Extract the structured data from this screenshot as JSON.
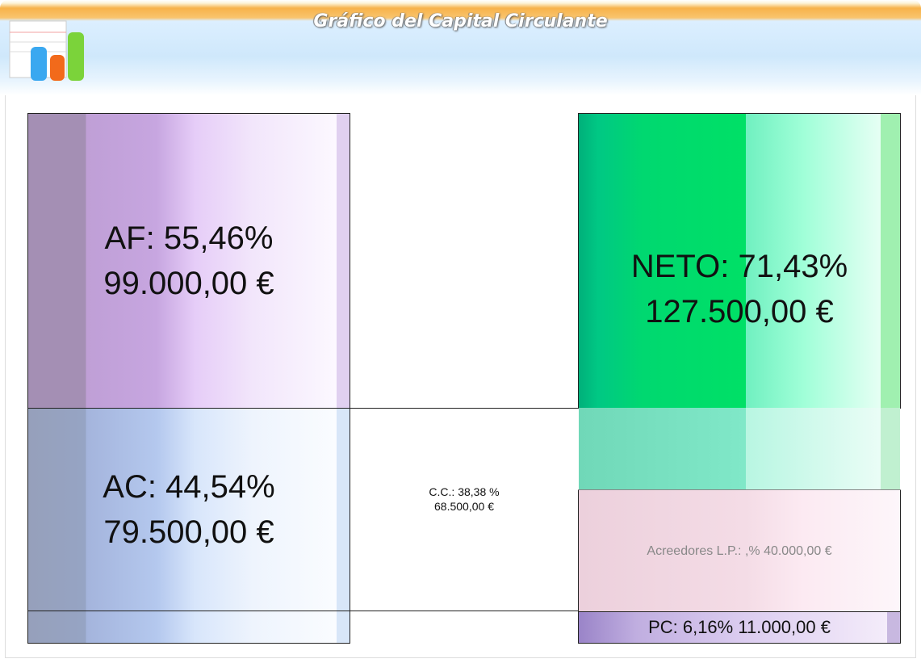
{
  "header": {
    "title": "Gráfico del Capital Circulante"
  },
  "blocks": {
    "af": [
      "AF: 55,46%",
      "99.000,00 €"
    ],
    "ac": [
      "AC: 44,54%",
      "79.500,00 €"
    ],
    "cc": [
      "C.C.: 38,38 %",
      "68.500,00 €"
    ],
    "neto": [
      "NETO: 71,43%",
      "127.500,00 €"
    ],
    "acreedores": "Acreedores L.P.: ,% 40.000,00 €",
    "pc": "PC: 6,16% 11.000,00 €"
  }
}
